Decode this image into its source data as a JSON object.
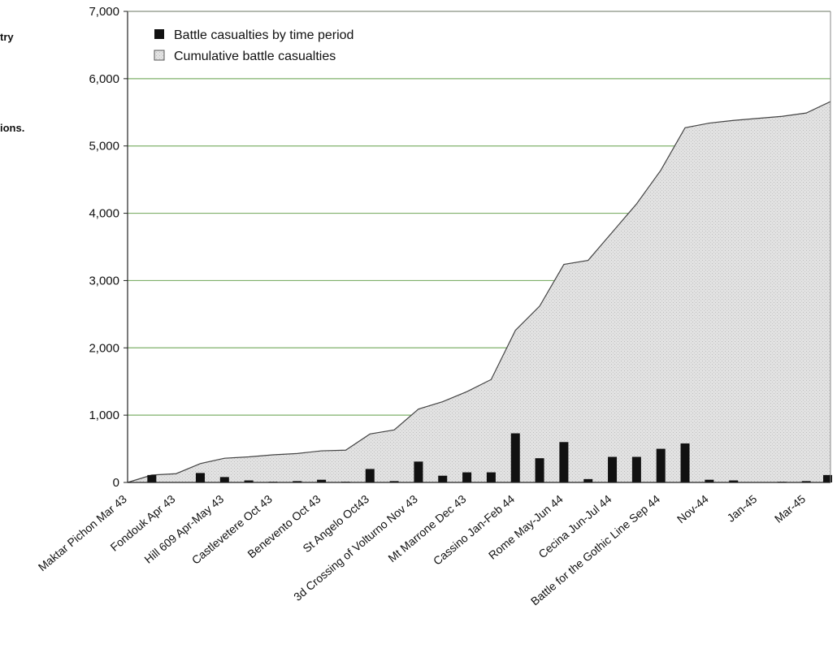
{
  "side_text": {
    "line1": "try",
    "line2": "ions."
  },
  "chart_data": {
    "type": "bar",
    "title": "",
    "xlabel": "",
    "ylabel": "",
    "ylim": [
      0,
      7000
    ],
    "yticks": [
      "7,000",
      "6,000",
      "5,000",
      "4,000",
      "3,000",
      "2,000",
      "1,000",
      "0"
    ],
    "grid": true,
    "legend_position": "top-left",
    "categories": [
      "Maktar Pichon Mar 43",
      "",
      "Fondouk Apr 43",
      "",
      "Hill 609 Apr-May 43",
      "",
      "Castlevetere Oct 43",
      "",
      "Benevento Oct 43",
      "",
      "St Angelo Oct43",
      "",
      "3d Crossing of Volturno Nov 43",
      "",
      "Mt Marrone Dec 43",
      "",
      "Cassino Jan-Feb 44",
      "",
      "Rome May-Jun 44",
      "",
      "Cecina Jun-Jul 44",
      "",
      "Battle for the Gothic Line Sep 44",
      "",
      "Nov-44",
      "",
      "Jan-45",
      "",
      "Mar-45",
      ""
    ],
    "series": [
      {
        "name": "Battle casualties by time period",
        "type": "bar",
        "values": [
          0,
          110,
          0,
          140,
          80,
          30,
          10,
          20,
          40,
          10,
          200,
          20,
          310,
          100,
          150,
          150,
          730,
          360,
          600,
          50,
          380,
          380,
          500,
          580,
          40,
          30,
          5,
          10,
          20,
          110
        ]
      },
      {
        "name": "Cumulative battle casualties",
        "type": "area",
        "values": [
          0,
          110,
          130,
          280,
          360,
          380,
          410,
          430,
          470,
          480,
          720,
          780,
          1090,
          1200,
          1350,
          1530,
          2260,
          2620,
          3240,
          3300,
          3720,
          4140,
          4640,
          5270,
          5340,
          5380,
          5410,
          5440,
          5490,
          5660
        ]
      }
    ]
  },
  "colors": {
    "bar": "#111111",
    "area_fill": "#dcdcdc",
    "area_stroke": "#444444",
    "grid": "#7fb06a",
    "axis": "#222222"
  }
}
